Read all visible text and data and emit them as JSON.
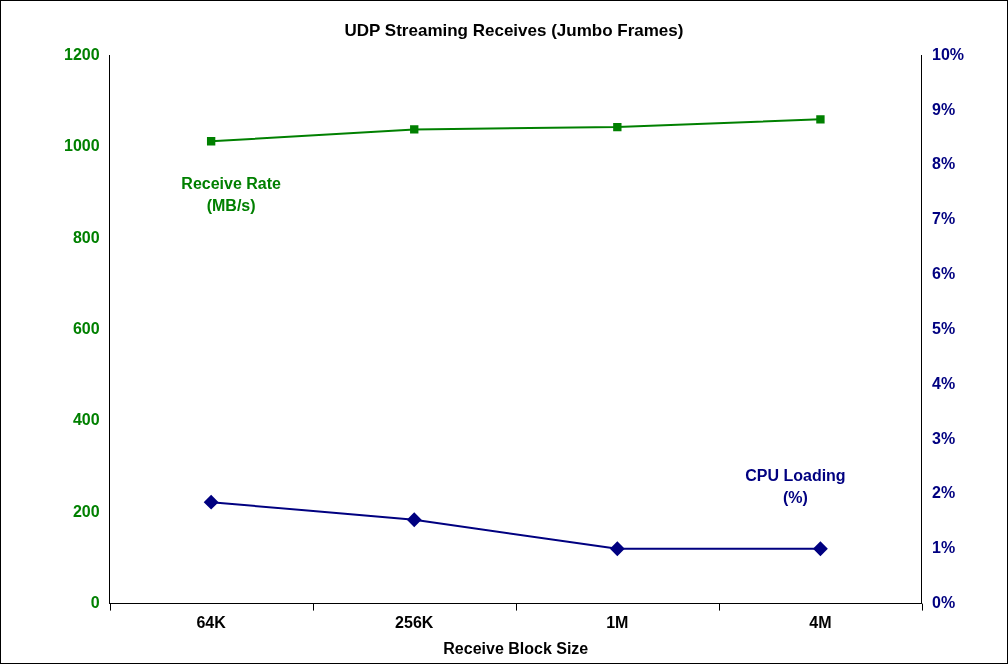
{
  "chart_data": {
    "type": "line",
    "title": "UDP Streaming Receives (Jumbo Frames)",
    "xlabel": "Receive Block Size",
    "categories": [
      "64K",
      "256K",
      "1M",
      "4M"
    ],
    "series": [
      {
        "name": "Receive Rate (MB/s)",
        "color": "#008000",
        "values": [
          1012,
          1038,
          1043,
          1060
        ],
        "marker": "square"
      },
      {
        "name": "CPU Loading (%)",
        "color": "#000080",
        "values": [
          1.85,
          1.53,
          1.0,
          1.0
        ],
        "axis": "y2",
        "marker": "diamond"
      }
    ],
    "ylim": [
      0,
      1200
    ],
    "yticks": [
      0,
      200,
      400,
      600,
      800,
      1000,
      1200
    ],
    "y2lim": [
      0,
      10
    ],
    "y2ticks": [
      {
        "value": 0,
        "label": "0%"
      },
      {
        "value": 1,
        "label": "1%"
      },
      {
        "value": 2,
        "label": "2%"
      },
      {
        "value": 3,
        "label": "3%"
      },
      {
        "value": 4,
        "label": "4%"
      },
      {
        "value": 5,
        "label": "5%"
      },
      {
        "value": 6,
        "label": "6%"
      },
      {
        "value": 7,
        "label": "7%"
      },
      {
        "value": 8,
        "label": "8%"
      },
      {
        "value": 9,
        "label": "9%"
      },
      {
        "value": 10,
        "label": "10%"
      }
    ],
    "grid": false,
    "legend": false,
    "line_style": "solid"
  }
}
